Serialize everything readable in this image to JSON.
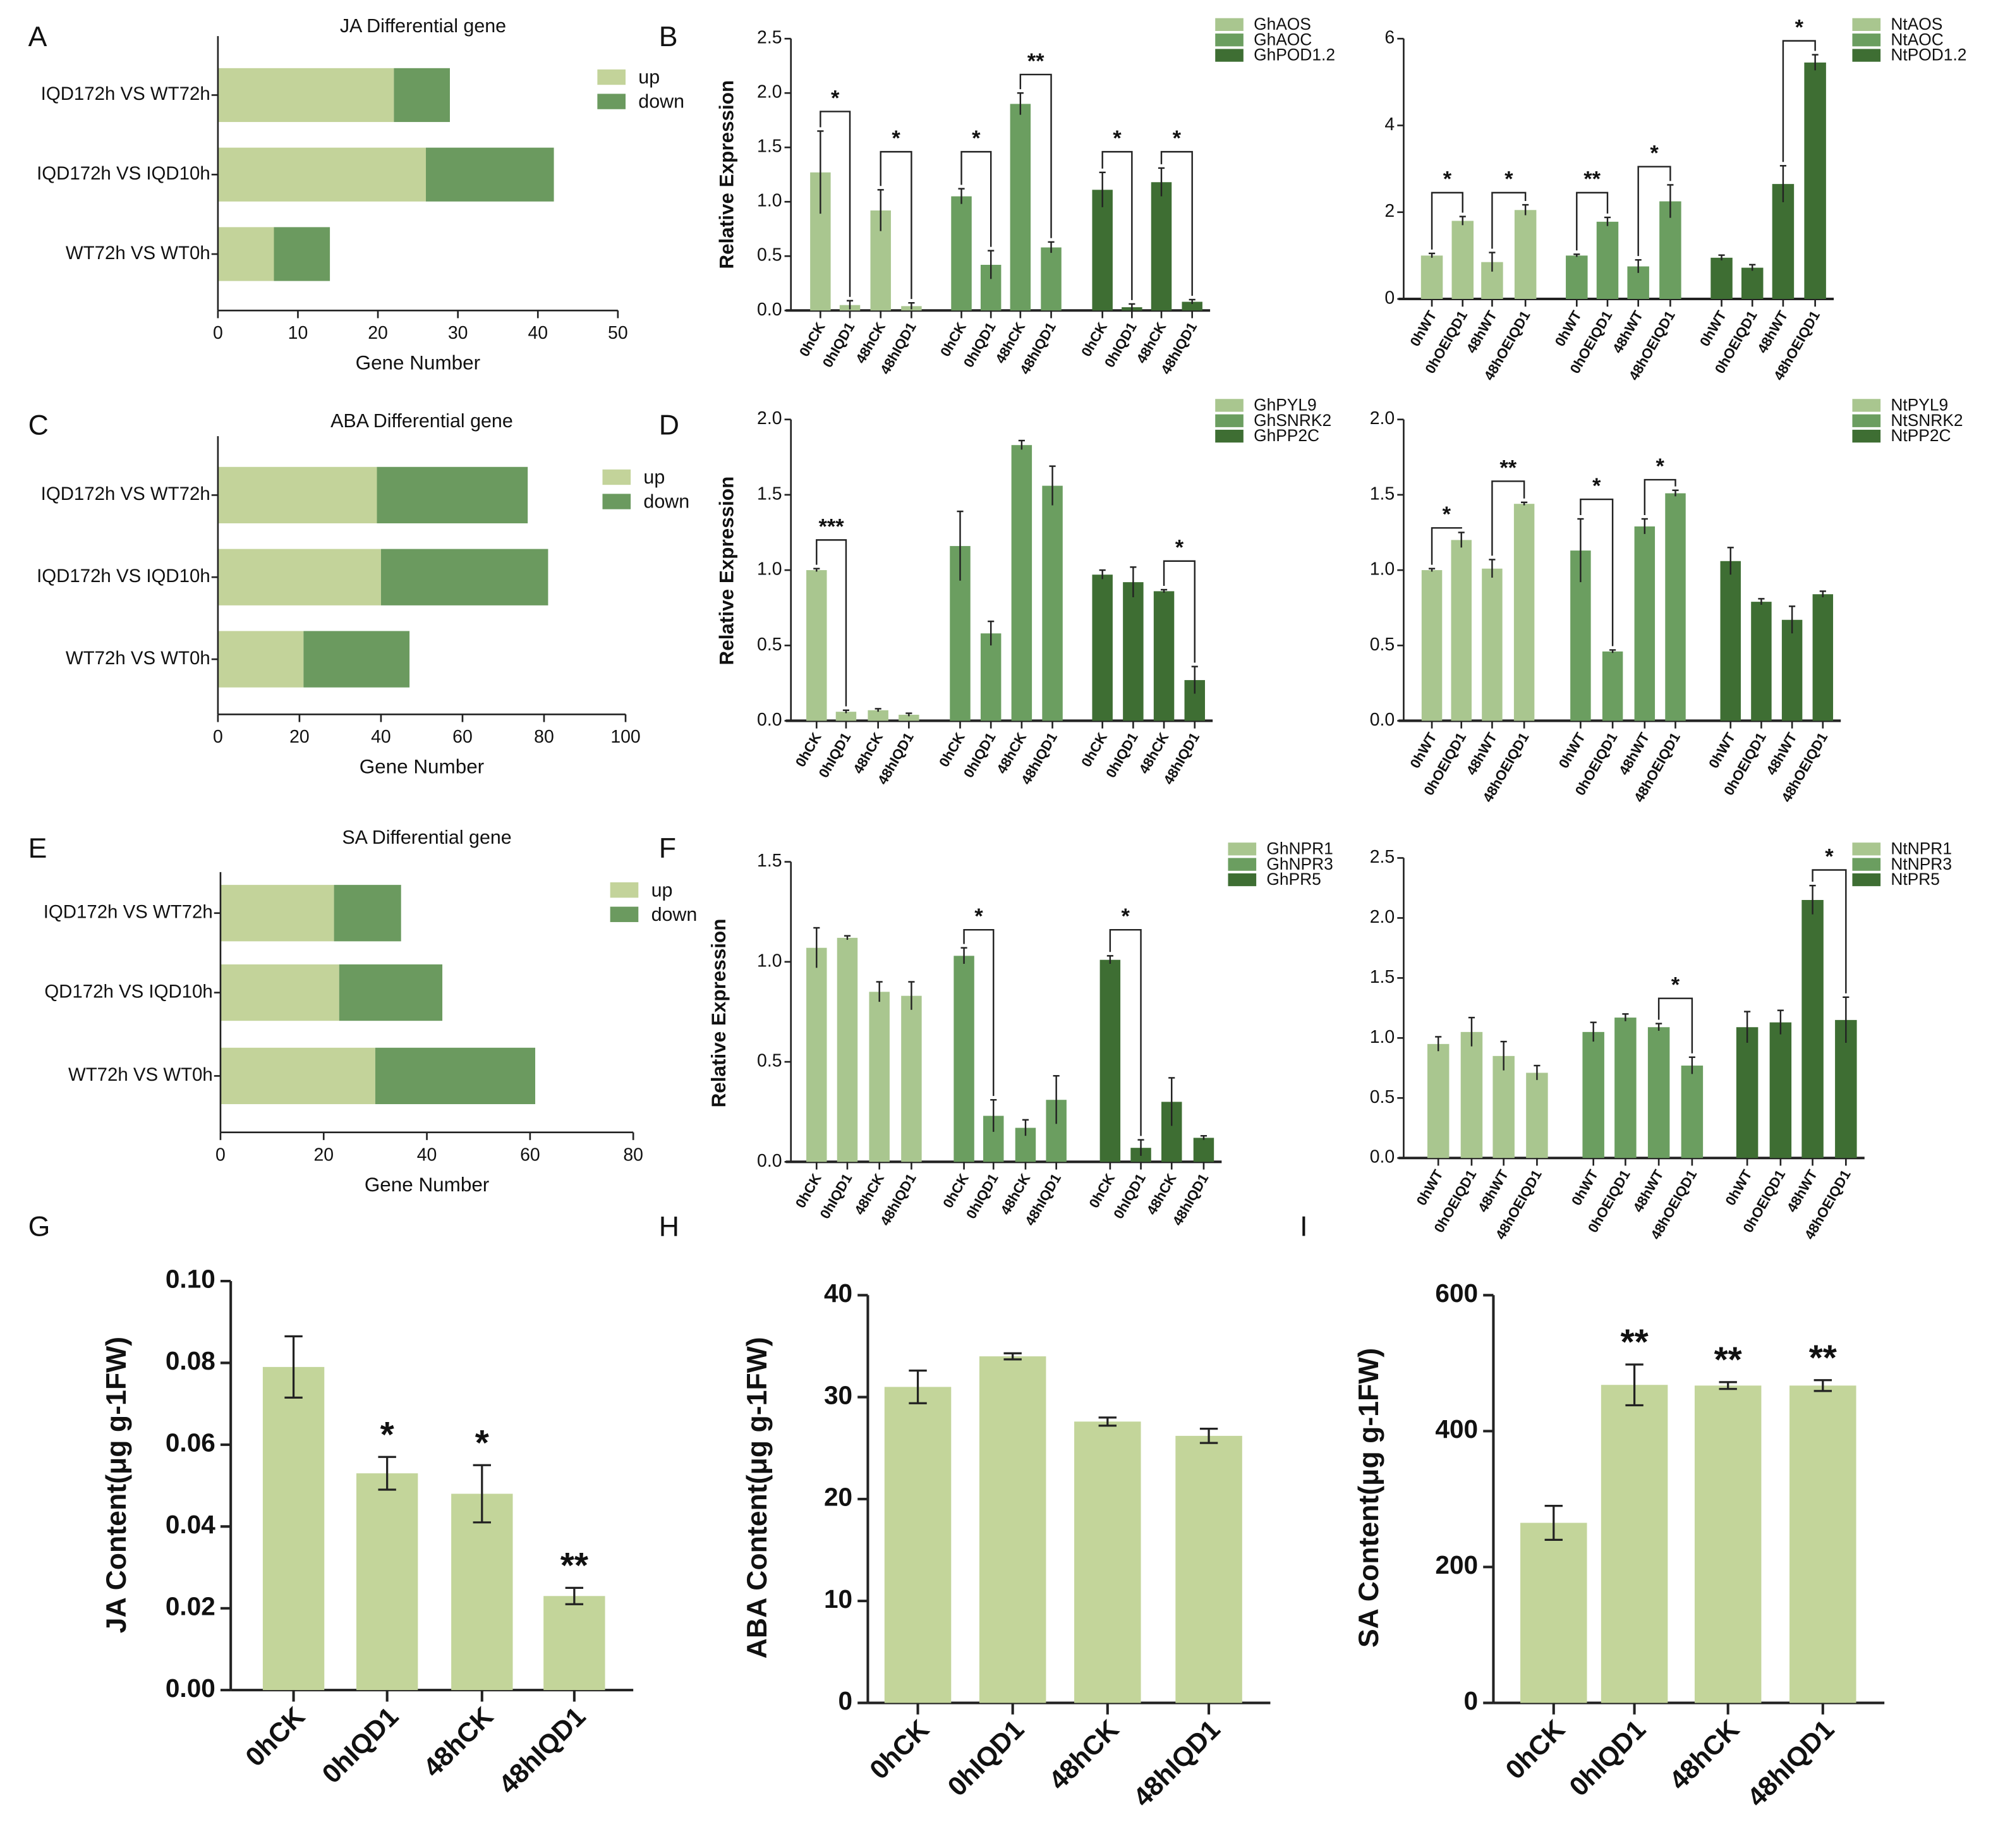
{
  "colors": {
    "up": "#c3d39a",
    "down": "#6b9a5f",
    "series": [
      "#a9c68f",
      "#6b9e60",
      "#3e6e33"
    ],
    "content_bar": "#c3d59a",
    "axis": "#222222"
  },
  "chart_data": [
    {
      "panel_label": "A",
      "type": "bar",
      "orientation": "horizontal",
      "stacked": true,
      "title": "JA Differential gene",
      "categories": [
        "IQD172h VS WT72h",
        "IQD172h VS IQD10h",
        "WT72h VS WT0h"
      ],
      "series": [
        {
          "name": "up",
          "values": [
            22,
            26,
            7
          ]
        },
        {
          "name": "down",
          "values": [
            7,
            16,
            7
          ]
        }
      ],
      "xlabel": "Gene Number",
      "xlim": [
        0,
        50
      ],
      "xticks": [
        "0",
        "10",
        "20",
        "30",
        "40",
        "50"
      ]
    },
    {
      "panel_label": "B",
      "type": "bar",
      "grouped": true,
      "ylabel": "Relative Expression",
      "ylim": [
        0,
        2.5
      ],
      "yticks": [
        "0.0",
        "0.5",
        "1.0",
        "1.5",
        "2.0",
        "2.5"
      ],
      "categories": [
        "0hCK",
        "0hIQD1",
        "48hCK",
        "48hIQD1"
      ],
      "series": [
        {
          "name": "GhAOS",
          "values": [
            1.27,
            0.05,
            0.92,
            0.04
          ],
          "err": [
            0.38,
            0.04,
            0.19,
            0.03
          ]
        },
        {
          "name": "GhAOC",
          "values": [
            1.05,
            0.42,
            1.9,
            0.58
          ],
          "err": [
            0.07,
            0.13,
            0.1,
            0.05
          ]
        },
        {
          "name": "GhPOD1.2",
          "values": [
            1.11,
            0.03,
            1.18,
            0.08
          ],
          "err": [
            0.16,
            0.03,
            0.13,
            0.02
          ]
        }
      ],
      "brackets": [
        {
          "series": 0,
          "a": 0,
          "b": 1,
          "y": 1.83,
          "label": "*"
        },
        {
          "series": 0,
          "a": 2,
          "b": 3,
          "y": 1.46,
          "label": "*"
        },
        {
          "series": 1,
          "a": 0,
          "b": 1,
          "y": 1.46,
          "label": "*"
        },
        {
          "series": 1,
          "a": 2,
          "b": 3,
          "y": 2.17,
          "label": "**"
        },
        {
          "series": 2,
          "a": 0,
          "b": 1,
          "y": 1.46,
          "label": "*"
        },
        {
          "series": 2,
          "a": 2,
          "b": 3,
          "y": 1.46,
          "label": "*"
        }
      ]
    },
    {
      "type": "bar",
      "grouped": true,
      "ylim": [
        0,
        6
      ],
      "yticks": [
        "0",
        "2",
        "4",
        "6"
      ],
      "categories": [
        "0hWT",
        "0hOEIQD1",
        "48hWT",
        "48hOEIQD1"
      ],
      "series": [
        {
          "name": "NtAOS",
          "values": [
            1.0,
            1.8,
            0.85,
            2.05
          ],
          "err": [
            0.05,
            0.1,
            0.22,
            0.12
          ]
        },
        {
          "name": "NtAOC",
          "values": [
            1.0,
            1.78,
            0.75,
            2.25
          ],
          "err": [
            0.03,
            0.1,
            0.15,
            0.38
          ]
        },
        {
          "name": "NtPOD1.2",
          "values": [
            0.95,
            0.72,
            2.65,
            5.45
          ],
          "err": [
            0.06,
            0.07,
            0.42,
            0.18
          ]
        }
      ],
      "brackets": [
        {
          "series": 0,
          "a": 0,
          "b": 1,
          "y": 2.45,
          "label": "*"
        },
        {
          "series": 0,
          "a": 2,
          "b": 3,
          "y": 2.45,
          "label": "*"
        },
        {
          "series": 1,
          "a": 0,
          "b": 1,
          "y": 2.45,
          "label": "**"
        },
        {
          "series": 1,
          "a": 2,
          "b": 3,
          "y": 3.05,
          "label": "*"
        },
        {
          "series": 2,
          "a": 2,
          "b": 3,
          "y": 5.95,
          "label": "*"
        }
      ]
    },
    {
      "panel_label": "C",
      "type": "bar",
      "orientation": "horizontal",
      "stacked": true,
      "title": "ABA Differential gene",
      "categories": [
        "IQD172h VS WT72h",
        "IQD172h VS IQD10h",
        "WT72h VS WT0h"
      ],
      "series": [
        {
          "name": "up",
          "values": [
            39,
            40,
            21
          ]
        },
        {
          "name": "down",
          "values": [
            37,
            41,
            26
          ]
        }
      ],
      "xlabel": "Gene Number",
      "xlim": [
        0,
        100
      ],
      "xticks": [
        "0",
        "20",
        "40",
        "60",
        "80",
        "100"
      ]
    },
    {
      "panel_label": "D",
      "type": "bar",
      "grouped": true,
      "ylabel": "Relative Expression",
      "ylim": [
        0,
        2.0
      ],
      "yticks": [
        "0.0",
        "0.5",
        "1.0",
        "1.5",
        "2.0"
      ],
      "categories": [
        "0hCK",
        "0hIQD1",
        "48hCK",
        "48hIQD1"
      ],
      "series": [
        {
          "name": "GhPYL9",
          "values": [
            1.0,
            0.06,
            0.07,
            0.04
          ],
          "err": [
            0.01,
            0.01,
            0.01,
            0.01
          ]
        },
        {
          "name": "GhSNRK2",
          "values": [
            1.16,
            0.58,
            1.83,
            1.56
          ],
          "err": [
            0.23,
            0.08,
            0.03,
            0.13
          ]
        },
        {
          "name": "GhPP2C",
          "values": [
            0.97,
            0.92,
            0.86,
            0.27
          ],
          "err": [
            0.03,
            0.1,
            0.01,
            0.09
          ]
        }
      ],
      "brackets": [
        {
          "series": 0,
          "a": 0,
          "b": 1,
          "y": 1.2,
          "label": "***"
        },
        {
          "series": 2,
          "a": 2,
          "b": 3,
          "y": 1.06,
          "label": "*"
        }
      ]
    },
    {
      "type": "bar",
      "grouped": true,
      "ylim": [
        0,
        2.0
      ],
      "yticks": [
        "0.0",
        "0.5",
        "1.0",
        "1.5",
        "2.0"
      ],
      "categories": [
        "0hWT",
        "0hOEIQD1",
        "48hWT",
        "48hOEIQD1"
      ],
      "series": [
        {
          "name": "NtPYL9",
          "values": [
            1.0,
            1.2,
            1.01,
            1.44
          ],
          "err": [
            0.01,
            0.05,
            0.06,
            0.01
          ]
        },
        {
          "name": "NtSNRK2",
          "values": [
            1.13,
            0.46,
            1.29,
            1.51
          ],
          "err": [
            0.21,
            0.01,
            0.05,
            0.02
          ]
        },
        {
          "name": "NtPP2C",
          "values": [
            1.06,
            0.79,
            0.67,
            0.84
          ],
          "err": [
            0.09,
            0.02,
            0.09,
            0.02
          ]
        }
      ],
      "brackets": [
        {
          "series": 0,
          "a": 0,
          "b": 1,
          "y": 1.28,
          "label": "*"
        },
        {
          "series": 0,
          "a": 2,
          "b": 3,
          "y": 1.59,
          "label": "**"
        },
        {
          "series": 1,
          "a": 0,
          "b": 1,
          "y": 1.47,
          "label": "*"
        },
        {
          "series": 1,
          "a": 2,
          "b": 3,
          "y": 1.6,
          "label": "*"
        }
      ]
    },
    {
      "panel_label": "E",
      "type": "bar",
      "orientation": "horizontal",
      "stacked": true,
      "title": "SA Differential gene",
      "categories": [
        "IQD172h VS WT72h",
        "QD172h VS IQD10h",
        "WT72h VS WT0h"
      ],
      "series": [
        {
          "name": "up",
          "values": [
            22,
            23,
            30
          ]
        },
        {
          "name": "down",
          "values": [
            13,
            20,
            31
          ]
        }
      ],
      "xlabel": "Gene Number",
      "xlim": [
        0,
        80
      ],
      "xticks": [
        "0",
        "20",
        "40",
        "60",
        "80"
      ]
    },
    {
      "panel_label": "F",
      "type": "bar",
      "grouped": true,
      "ylabel": "Relative Expression",
      "ylim": [
        0,
        1.5
      ],
      "yticks": [
        "0.0",
        "0.5",
        "1.0",
        "1.5"
      ],
      "categories": [
        "0hCK",
        "0hIQD1",
        "48hCK",
        "48hIQD1"
      ],
      "series": [
        {
          "name": "GhNPR1",
          "values": [
            1.07,
            1.12,
            0.85,
            0.83
          ],
          "err": [
            0.1,
            0.01,
            0.05,
            0.07
          ]
        },
        {
          "name": "GhNPR3",
          "values": [
            1.03,
            0.23,
            0.17,
            0.31
          ],
          "err": [
            0.04,
            0.08,
            0.04,
            0.12
          ]
        },
        {
          "name": "GhPR5",
          "values": [
            1.01,
            0.07,
            0.3,
            0.12
          ],
          "err": [
            0.02,
            0.04,
            0.12,
            0.01
          ]
        }
      ],
      "brackets": [
        {
          "series": 1,
          "a": 0,
          "b": 1,
          "y": 1.16,
          "label": "*"
        },
        {
          "series": 2,
          "a": 0,
          "b": 1,
          "y": 1.16,
          "label": "*"
        }
      ]
    },
    {
      "type": "bar",
      "grouped": true,
      "ylim": [
        0,
        2.5
      ],
      "yticks": [
        "0.0",
        "0.5",
        "1.0",
        "1.5",
        "2.0",
        "2.5"
      ],
      "categories": [
        "0hWT",
        "0hOEIQD1",
        "48hWT",
        "48hOEIQD1"
      ],
      "series": [
        {
          "name": "NtNPR1",
          "values": [
            0.95,
            1.05,
            0.85,
            0.71
          ],
          "err": [
            0.06,
            0.12,
            0.12,
            0.06
          ]
        },
        {
          "name": "NtNPR3",
          "values": [
            1.05,
            1.17,
            1.09,
            0.77
          ],
          "err": [
            0.08,
            0.03,
            0.03,
            0.07
          ]
        },
        {
          "name": "NtPR5",
          "values": [
            1.09,
            1.13,
            2.15,
            1.15
          ],
          "err": [
            0.13,
            0.1,
            0.12,
            0.19
          ]
        }
      ],
      "brackets": [
        {
          "series": 1,
          "a": 2,
          "b": 3,
          "y": 1.33,
          "label": "*"
        },
        {
          "series": 2,
          "a": 2,
          "b": 3,
          "y": 2.4,
          "label": "*"
        }
      ]
    },
    {
      "panel_label": "G",
      "type": "bar",
      "ylabel": "JA Content(μg g-1FW)",
      "ylim": [
        0,
        0.1
      ],
      "yticks": [
        "0.00",
        "0.02",
        "0.04",
        "0.06",
        "0.08",
        "0.10"
      ],
      "categories": [
        "0hCK",
        "0hIQD1",
        "48hCK",
        "48hIQD1"
      ],
      "values": [
        0.079,
        0.053,
        0.048,
        0.023
      ],
      "err": [
        0.0075,
        0.004,
        0.007,
        0.002
      ],
      "significance": [
        "",
        "*",
        "*",
        "**"
      ]
    },
    {
      "panel_label": "H",
      "type": "bar",
      "ylabel": "ABA Content(μg g-1FW)",
      "ylim": [
        0,
        40
      ],
      "yticks": [
        "0",
        "10",
        "20",
        "30",
        "40"
      ],
      "categories": [
        "0hCK",
        "0hIQD1",
        "48hCK",
        "48hIQD1"
      ],
      "values": [
        31.0,
        34.0,
        27.6,
        26.2
      ],
      "err": [
        1.6,
        0.3,
        0.4,
        0.7
      ],
      "significance": [
        "",
        "",
        "",
        ""
      ]
    },
    {
      "panel_label": "I",
      "type": "bar",
      "ylabel": "SA Content(μg g-1FW)",
      "ylim": [
        0,
        600
      ],
      "yticks": [
        "0",
        "200",
        "400",
        "600"
      ],
      "categories": [
        "0hCK",
        "0hIQD1",
        "48hCK",
        "48hIQD1"
      ],
      "values": [
        265,
        468,
        467,
        467
      ],
      "err": [
        25,
        30,
        5,
        8
      ],
      "significance": [
        "",
        "**",
        "**",
        "**"
      ]
    }
  ]
}
